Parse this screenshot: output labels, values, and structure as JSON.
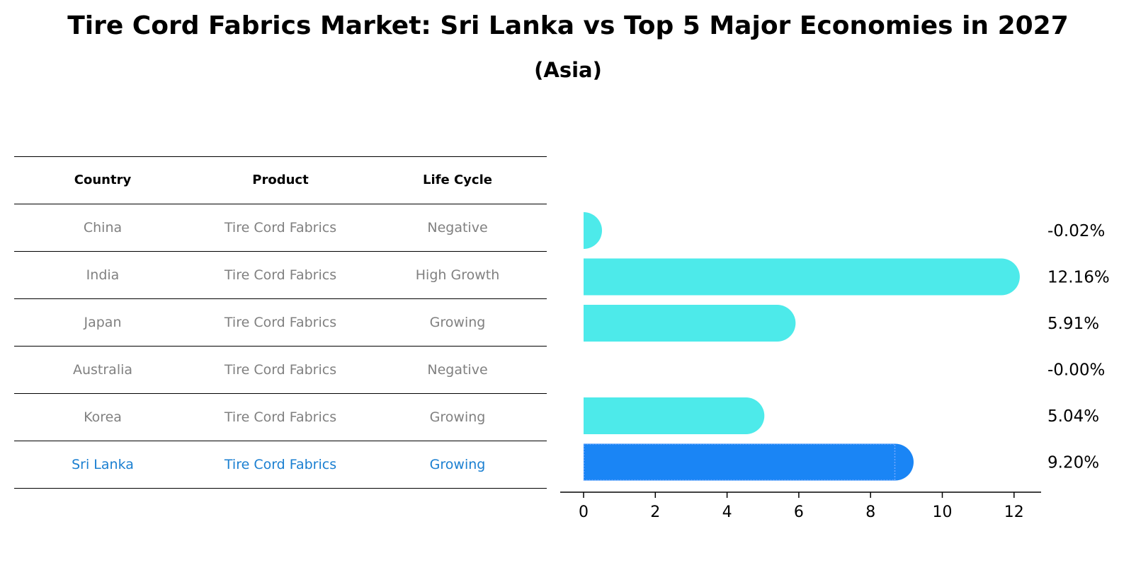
{
  "title": "Tire Cord Fabrics Market: Sri Lanka vs Top 5 Major Economies in 2027",
  "subtitle": "(Asia)",
  "table": {
    "headers": [
      "Country",
      "Product",
      "Life Cycle"
    ],
    "rows": [
      [
        "China",
        "Tire Cord Fabrics",
        "Negative"
      ],
      [
        "India",
        "Tire Cord Fabrics",
        "High Growth"
      ],
      [
        "Japan",
        "Tire Cord Fabrics",
        "Growing"
      ],
      [
        "Australia",
        "Tire Cord Fabrics",
        "Negative"
      ],
      [
        "Korea",
        "Tire Cord Fabrics",
        "Growing"
      ],
      [
        "Sri Lanka",
        "Tire Cord Fabrics",
        "Growing"
      ]
    ],
    "highlight_row": 5
  },
  "colors": {
    "bar": "#4deaea",
    "highlight": "#1a85f5",
    "highlight_text": "#1a7fd1",
    "muted_text": "#808080"
  },
  "chart_data": {
    "type": "bar",
    "orientation": "horizontal",
    "categories": [
      "China",
      "India",
      "Japan",
      "Australia",
      "Korea",
      "Sri Lanka"
    ],
    "values": [
      -0.02,
      12.16,
      5.91,
      -0.0,
      5.04,
      9.2
    ],
    "labels": [
      "-0.02%",
      "12.16%",
      "5.91%",
      "-0.00%",
      "5.04%",
      "9.20%"
    ],
    "highlight": "Sri Lanka",
    "xlim": [
      -0.65,
      12.8
    ],
    "xticks": [
      0,
      2,
      4,
      6,
      8,
      10,
      12
    ],
    "xlabel": "",
    "ylabel": "",
    "grid": false
  }
}
